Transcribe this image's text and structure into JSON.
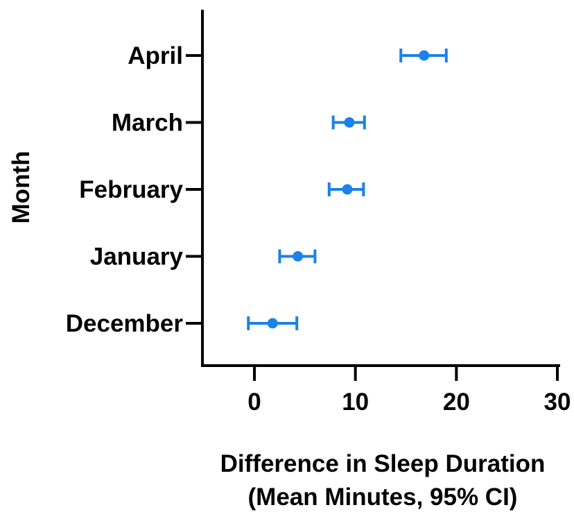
{
  "chart_data": {
    "type": "scatter",
    "title": "",
    "xlabel_lines": [
      "Difference in Sleep Duration",
      "(Mean Minutes, 95% CI)"
    ],
    "ylabel": "Month",
    "xlim": [
      -5,
      30
    ],
    "xticks": [
      0,
      10,
      20,
      30
    ],
    "grid": false,
    "legend": "none",
    "categories": [
      "April",
      "March",
      "February",
      "January",
      "December"
    ],
    "series": [
      {
        "color": "#1a82e8",
        "points": [
          {
            "category": "April",
            "mean": 16.8,
            "ci_low": 14.5,
            "ci_high": 19.0
          },
          {
            "category": "March",
            "mean": 9.4,
            "ci_low": 7.8,
            "ci_high": 10.9
          },
          {
            "category": "February",
            "mean": 9.2,
            "ci_low": 7.4,
            "ci_high": 10.8
          },
          {
            "category": "January",
            "mean": 4.3,
            "ci_low": 2.5,
            "ci_high": 6.0
          },
          {
            "category": "December",
            "mean": 1.8,
            "ci_low": -0.6,
            "ci_high": 4.2
          }
        ]
      }
    ]
  }
}
